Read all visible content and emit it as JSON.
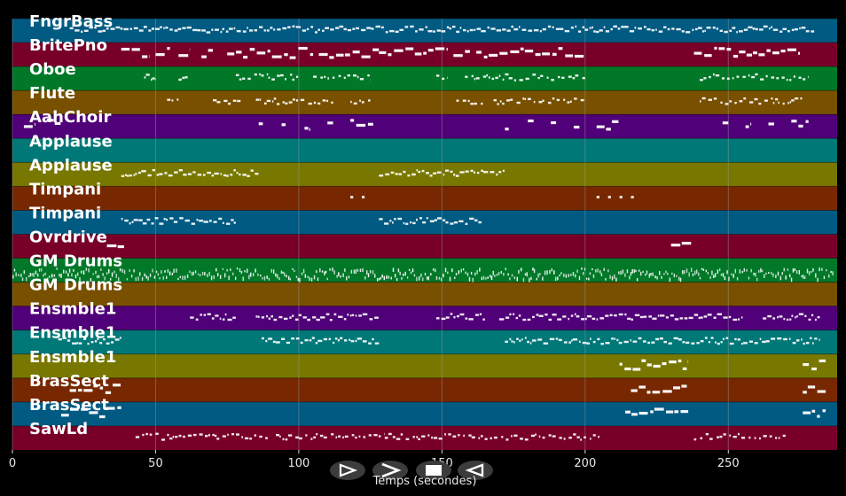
{
  "chart_data": {
    "type": "piano-roll",
    "xlabel": "Temps (secondes)",
    "xlim": [
      0,
      288
    ],
    "xticks": [
      0,
      50,
      100,
      150,
      200,
      250
    ],
    "grid": true,
    "tracks": [
      {
        "name": "FngrBass",
        "color": "#005a82",
        "segments": [
          [
            20,
            280
          ]
        ],
        "density": "dense"
      },
      {
        "name": "BritePno",
        "color": "#780028",
        "segments": [
          [
            38,
            48
          ],
          [
            50,
            55
          ],
          [
            58,
            62
          ],
          [
            66,
            70
          ],
          [
            75,
            105
          ],
          [
            107,
            128
          ],
          [
            128,
            152
          ],
          [
            154,
            160
          ],
          [
            162,
            200
          ],
          [
            238,
            275
          ]
        ],
        "density": "blocks"
      },
      {
        "name": "Oboe",
        "color": "#007828",
        "segments": [
          [
            46,
            50
          ],
          [
            58,
            62
          ],
          [
            78,
            100
          ],
          [
            105,
            125
          ],
          [
            148,
            152
          ],
          [
            158,
            200
          ],
          [
            240,
            278
          ]
        ],
        "density": "sparse"
      },
      {
        "name": "Flute",
        "color": "#785000",
        "segments": [
          [
            54,
            58
          ],
          [
            70,
            80
          ],
          [
            85,
            112
          ],
          [
            118,
            125
          ],
          [
            155,
            165
          ],
          [
            168,
            200
          ],
          [
            240,
            276
          ]
        ],
        "density": "sparse"
      },
      {
        "name": "AahChoir",
        "color": "#500078",
        "segments": [
          [
            4,
            8
          ],
          [
            12,
            17
          ],
          [
            86,
            88
          ],
          [
            94,
            96
          ],
          [
            102,
            104
          ],
          [
            110,
            112
          ],
          [
            118,
            126
          ],
          [
            172,
            174
          ],
          [
            180,
            182
          ],
          [
            188,
            190
          ],
          [
            196,
            198
          ],
          [
            204,
            212
          ],
          [
            248,
            250
          ],
          [
            256,
            258
          ],
          [
            264,
            266
          ],
          [
            272,
            278
          ]
        ],
        "density": "blocks"
      },
      {
        "name": "Applause",
        "color": "#007878",
        "segments": [],
        "density": "none"
      },
      {
        "name": "Applause",
        "color": "#787800",
        "segments": [
          [
            38,
            86
          ],
          [
            128,
            172
          ]
        ],
        "density": "dense"
      },
      {
        "name": "Timpani",
        "color": "#782800",
        "segments": [
          [
            118,
            119
          ],
          [
            122,
            123
          ],
          [
            204,
            205
          ],
          [
            208,
            209
          ],
          [
            212,
            213
          ],
          [
            216,
            217
          ]
        ],
        "density": "points"
      },
      {
        "name": "Timpani",
        "color": "#005a82",
        "segments": [
          [
            38,
            78
          ],
          [
            128,
            164
          ]
        ],
        "density": "dense"
      },
      {
        "name": "Ovrdrive",
        "color": "#780028",
        "segments": [
          [
            33,
            39
          ],
          [
            230,
            237
          ]
        ],
        "density": "blocks"
      },
      {
        "name": "GM Drums",
        "color": "#007828",
        "segments": [
          [
            0,
            287
          ]
        ],
        "density": "drums"
      },
      {
        "name": "GM Drums",
        "color": "#785000",
        "segments": [],
        "density": "none"
      },
      {
        "name": "Ensmble1",
        "color": "#500078",
        "segments": [
          [
            62,
            78
          ],
          [
            85,
            128
          ],
          [
            148,
            165
          ],
          [
            170,
            255
          ],
          [
            262,
            282
          ]
        ],
        "density": "dense"
      },
      {
        "name": "Ensmble1",
        "color": "#007878",
        "segments": [
          [
            16,
            38
          ],
          [
            87,
            128
          ],
          [
            172,
            282
          ]
        ],
        "density": "dense"
      },
      {
        "name": "Ensmble1",
        "color": "#787800",
        "segments": [
          [
            212,
            236
          ],
          [
            276,
            284
          ]
        ],
        "density": "blocks"
      },
      {
        "name": "BrasSect",
        "color": "#782800",
        "segments": [
          [
            20,
            38
          ],
          [
            216,
            236
          ],
          [
            276,
            284
          ]
        ],
        "density": "blocks"
      },
      {
        "name": "BrasSect",
        "color": "#005a82",
        "segments": [
          [
            17,
            38
          ],
          [
            214,
            236
          ],
          [
            276,
            284
          ]
        ],
        "density": "blocks"
      },
      {
        "name": "SawLd",
        "color": "#780028",
        "segments": [
          [
            43,
            90
          ],
          [
            92,
            130
          ],
          [
            130,
            205
          ],
          [
            238,
            270
          ]
        ],
        "density": "sparse"
      }
    ],
    "colors": {
      "background": "#000000",
      "grid": "#9a9a9a",
      "notes": "#ffffff",
      "text": "#ffffff"
    }
  },
  "controls": [
    {
      "name": "play",
      "icon": "play-outline-icon"
    },
    {
      "name": "next",
      "icon": "chevron-right-icon"
    },
    {
      "name": "stop",
      "icon": "stop-icon"
    },
    {
      "name": "back",
      "icon": "triangle-left-icon"
    }
  ]
}
